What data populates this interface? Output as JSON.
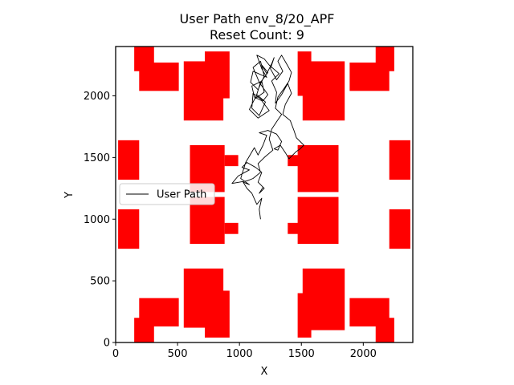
{
  "chart_data": {
    "type": "line",
    "title": "User Path env_8/20_APF",
    "subtitle": "Reset Count: 9",
    "xlabel": "X",
    "ylabel": "Y",
    "xlim": [
      0,
      2400
    ],
    "ylim": [
      0,
      2400
    ],
    "xticks": [
      0,
      500,
      1000,
      1500,
      2000
    ],
    "yticks": [
      0,
      500,
      1000,
      1500,
      2000
    ],
    "grid": false,
    "legend": {
      "placement": "center-left",
      "entries": [
        "User Path"
      ]
    },
    "obstacle_color": "#ff0000",
    "path_color": "#000000",
    "obstacles": [
      {
        "x0": 150,
        "x1": 310,
        "y0": 0,
        "y1": 200
      },
      {
        "x0": 190,
        "x1": 510,
        "y0": 130,
        "y1": 360
      },
      {
        "x0": 550,
        "x1": 870,
        "y0": 120,
        "y1": 600
      },
      {
        "x0": 720,
        "x1": 920,
        "y0": 40,
        "y1": 420
      },
      {
        "x0": 1470,
        "x1": 1580,
        "y0": 40,
        "y1": 400
      },
      {
        "x0": 1510,
        "x1": 1850,
        "y0": 100,
        "y1": 600
      },
      {
        "x0": 1890,
        "x1": 2210,
        "y0": 130,
        "y1": 360
      },
      {
        "x0": 2100,
        "x1": 2250,
        "y0": 0,
        "y1": 200
      },
      {
        "x0": 20,
        "x1": 190,
        "y0": 760,
        "y1": 1080
      },
      {
        "x0": 600,
        "x1": 880,
        "y0": 800,
        "y1": 1180
      },
      {
        "x0": 880,
        "x1": 990,
        "y0": 880,
        "y1": 970
      },
      {
        "x0": 1390,
        "x1": 1490,
        "y0": 880,
        "y1": 970
      },
      {
        "x0": 1470,
        "x1": 1800,
        "y0": 800,
        "y1": 1180
      },
      {
        "x0": 2210,
        "x1": 2380,
        "y0": 760,
        "y1": 1080
      },
      {
        "x0": 20,
        "x1": 190,
        "y0": 1320,
        "y1": 1640
      },
      {
        "x0": 600,
        "x1": 880,
        "y0": 1220,
        "y1": 1600
      },
      {
        "x0": 880,
        "x1": 990,
        "y0": 1430,
        "y1": 1520
      },
      {
        "x0": 1390,
        "x1": 1490,
        "y0": 1430,
        "y1": 1520
      },
      {
        "x0": 1470,
        "x1": 1800,
        "y0": 1220,
        "y1": 1600
      },
      {
        "x0": 2210,
        "x1": 2380,
        "y0": 1320,
        "y1": 1640
      },
      {
        "x0": 150,
        "x1": 310,
        "y0": 2200,
        "y1": 2400
      },
      {
        "x0": 190,
        "x1": 510,
        "y0": 2040,
        "y1": 2270
      },
      {
        "x0": 550,
        "x1": 870,
        "y0": 1800,
        "y1": 2280
      },
      {
        "x0": 720,
        "x1": 920,
        "y0": 1980,
        "y1": 2360
      },
      {
        "x0": 1470,
        "x1": 1580,
        "y0": 2000,
        "y1": 2360
      },
      {
        "x0": 1510,
        "x1": 1850,
        "y0": 1800,
        "y1": 2280
      },
      {
        "x0": 1890,
        "x1": 2210,
        "y0": 2040,
        "y1": 2270
      },
      {
        "x0": 2100,
        "x1": 2250,
        "y0": 2200,
        "y1": 2400
      }
    ],
    "series": [
      {
        "name": "User Path",
        "x": [
          1170,
          1160,
          1180,
          1140,
          1100,
          1060,
          1030,
          1080,
          1010,
          1050,
          1120,
          1150,
          1190,
          1220,
          1160,
          1230,
          1300,
          1340,
          1310,
          1280,
          1330,
          1370,
          1400,
          1460,
          1490,
          1520,
          1460,
          1440,
          1410,
          1350,
          1370,
          1420,
          1390,
          1340,
          1290,
          1300,
          1260,
          1320,
          1240,
          1200,
          1140,
          1180,
          1220,
          1110,
          1090,
          1150,
          1200,
          1170,
          1110,
          1160,
          1230,
          1190,
          1110,
          1100,
          1160,
          1210,
          1140,
          1080,
          1150,
          1240,
          1180,
          1120,
          1100,
          1180,
          1200,
          1130,
          1170,
          1230,
          1180,
          1220,
          1260,
          1280,
          1250,
          1300,
          1350,
          1310,
          1340,
          1380,
          1420,
          1400,
          1360,
          1310,
          1290,
          1340,
          1300,
          1260,
          1240,
          1270,
          1200,
          1150,
          1170,
          1110,
          1060,
          1000,
          940,
          990,
          1080,
          1020,
          1060,
          1130,
          1180,
          1150,
          1200,
          1160,
          1190
        ],
        "y": [
          1000,
          1080,
          1170,
          1120,
          1210,
          1250,
          1300,
          1280,
          1330,
          1460,
          1580,
          1520,
          1600,
          1680,
          1700,
          1720,
          1690,
          1630,
          1560,
          1570,
          1600,
          1540,
          1490,
          1550,
          1570,
          1600,
          1660,
          1720,
          1800,
          1850,
          1930,
          2020,
          2100,
          2010,
          1940,
          2030,
          2120,
          2180,
          2250,
          2300,
          2330,
          2220,
          2150,
          2200,
          2110,
          2050,
          2160,
          2280,
          2230,
          2110,
          2010,
          1960,
          2020,
          1900,
          1840,
          1950,
          2010,
          1890,
          1820,
          1880,
          1960,
          1990,
          2080,
          2120,
          2030,
          1980,
          2110,
          2190,
          2250,
          2180,
          2260,
          2310,
          2220,
          2130,
          2200,
          2280,
          2330,
          2260,
          2190,
          2120,
          2060,
          1990,
          1900,
          1850,
          1790,
          1730,
          1650,
          1560,
          1500,
          1450,
          1380,
          1330,
          1310,
          1300,
          1290,
          1350,
          1400,
          1420,
          1460,
          1420,
          1380,
          1300,
          1250,
          1210,
          1260
        ]
      }
    ]
  }
}
